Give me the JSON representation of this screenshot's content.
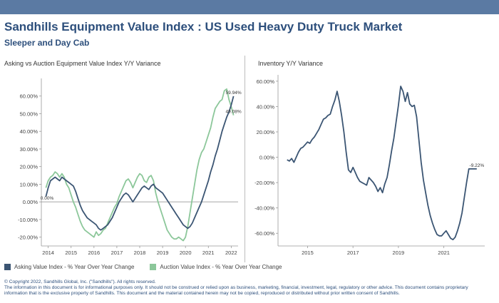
{
  "header": {
    "title": "Sandhills Equipment Value Index : US Used Heavy Duty Truck Market",
    "subtitle": "Sleeper and Day Cab"
  },
  "colors": {
    "asking": "#3b5573",
    "auction": "#8cc79a",
    "title": "#2d4f7c"
  },
  "legend": {
    "asking": "Asking Value Index - % Year Over Year Change",
    "auction": "Auction Value Index - % Year Over Year Change"
  },
  "footer": {
    "line1": "© Copyright 2022, Sandhills Global, Inc. (\"Sandhills\"). All rights reserved.",
    "line2": "The information in this document is for informational purposes only.  It should not be construed or relied upon as business, marketing, financial, investment, legal, regulatory or other advice. This document contains proprietary",
    "line3": "information that is the exclusive property of Sandhills. This document and the material contained herein may not be copied, reproduced or distributed without prior written consent of Sandhills."
  },
  "chart_data": [
    {
      "type": "line",
      "title": "Asking vs Auction Equipment Value Index Y/Y Variance",
      "ylim": [
        -25,
        70
      ],
      "xlim": [
        2013.7,
        2022.3
      ],
      "yticks": [
        -20,
        -10,
        0,
        10,
        20,
        30,
        40,
        50,
        60
      ],
      "ytick_labels": [
        "-20.00%",
        "-10.00%",
        "0.00%",
        "10.00%",
        "20.00%",
        "30.00%",
        "40.00%",
        "50.00%",
        "60.00%"
      ],
      "xticks": [
        2014,
        2015,
        2016,
        2017,
        2018,
        2019,
        2020,
        2021,
        2022
      ],
      "xtick_labels": [
        "2014",
        "2015",
        "2016",
        "2017",
        "2018",
        "2019",
        "2020",
        "2021",
        "2022"
      ],
      "grid": false,
      "zero_line": true,
      "annotations": [
        {
          "text": "0.00%",
          "x": 2013.95,
          "y": 0
        },
        {
          "text": "59.94%",
          "x": 2022.1,
          "y": 59.94
        },
        {
          "text": "49.08%",
          "x": 2022.1,
          "y": 49.08
        }
      ],
      "series": [
        {
          "name": "Asking Value Index - % Year Over Year Change",
          "x": [
            2013.9,
            2014.0,
            2014.1,
            2014.2,
            2014.3,
            2014.4,
            2014.5,
            2014.6,
            2014.7,
            2014.8,
            2014.9,
            2015.0,
            2015.1,
            2015.2,
            2015.3,
            2015.4,
            2015.5,
            2015.6,
            2015.7,
            2015.8,
            2015.9,
            2016.0,
            2016.1,
            2016.2,
            2016.3,
            2016.4,
            2016.5,
            2016.6,
            2016.7,
            2016.8,
            2016.9,
            2017.0,
            2017.1,
            2017.2,
            2017.3,
            2017.4,
            2017.5,
            2017.6,
            2017.7,
            2017.8,
            2017.9,
            2018.0,
            2018.1,
            2018.2,
            2018.3,
            2018.4,
            2018.5,
            2018.6,
            2018.7,
            2018.8,
            2018.9,
            2019.0,
            2019.1,
            2019.2,
            2019.3,
            2019.4,
            2019.5,
            2019.6,
            2019.7,
            2019.8,
            2019.9,
            2020.0,
            2020.1,
            2020.2,
            2020.3,
            2020.4,
            2020.5,
            2020.6,
            2020.7,
            2020.8,
            2020.9,
            2021.0,
            2021.1,
            2021.2,
            2021.3,
            2021.4,
            2021.5,
            2021.6,
            2021.7,
            2021.8,
            2021.9,
            2022.0,
            2022.1
          ],
          "values": [
            3,
            8,
            12,
            13,
            14,
            13,
            12,
            14,
            13,
            12,
            11,
            10,
            9,
            6,
            2,
            -2,
            -5,
            -7,
            -9,
            -10,
            -11,
            -12,
            -13,
            -15,
            -16,
            -15,
            -14,
            -13,
            -11,
            -9,
            -6,
            -3,
            0,
            2,
            4,
            5,
            4,
            2,
            0,
            2,
            4,
            6,
            8,
            9,
            8,
            7,
            9,
            10,
            8,
            7,
            6,
            5,
            3,
            1,
            -1,
            -3,
            -5,
            -7,
            -9,
            -11,
            -13,
            -14,
            -15,
            -14,
            -12,
            -9,
            -6,
            -3,
            0,
            4,
            8,
            12,
            17,
            21,
            26,
            30,
            35,
            40,
            44,
            48,
            51,
            55,
            59.94
          ]
        },
        {
          "name": "Auction Value Index - % Year Over Year Change",
          "x": [
            2013.9,
            2014.0,
            2014.1,
            2014.2,
            2014.3,
            2014.4,
            2014.5,
            2014.6,
            2014.7,
            2014.8,
            2014.9,
            2015.0,
            2015.1,
            2015.2,
            2015.3,
            2015.4,
            2015.5,
            2015.6,
            2015.7,
            2015.8,
            2015.9,
            2016.0,
            2016.1,
            2016.2,
            2016.3,
            2016.4,
            2016.5,
            2016.6,
            2016.7,
            2016.8,
            2016.9,
            2017.0,
            2017.1,
            2017.2,
            2017.3,
            2017.4,
            2017.5,
            2017.6,
            2017.7,
            2017.8,
            2017.9,
            2018.0,
            2018.1,
            2018.2,
            2018.3,
            2018.4,
            2018.5,
            2018.6,
            2018.7,
            2018.8,
            2018.9,
            2019.0,
            2019.1,
            2019.2,
            2019.3,
            2019.4,
            2019.5,
            2019.6,
            2019.7,
            2019.8,
            2019.9,
            2020.0,
            2020.1,
            2020.2,
            2020.3,
            2020.4,
            2020.5,
            2020.6,
            2020.7,
            2020.8,
            2020.9,
            2021.0,
            2021.1,
            2021.2,
            2021.3,
            2021.4,
            2021.5,
            2021.6,
            2021.7,
            2021.8,
            2021.9,
            2022.0,
            2022.1
          ],
          "values": [
            8,
            12,
            14,
            15,
            17,
            16,
            14,
            16,
            14,
            10,
            8,
            4,
            0,
            -3,
            -7,
            -11,
            -14,
            -16,
            -17,
            -18,
            -19,
            -20,
            -17,
            -19,
            -18,
            -16,
            -15,
            -12,
            -9,
            -6,
            -3,
            -1,
            3,
            6,
            9,
            12,
            13,
            11,
            8,
            11,
            14,
            16,
            15,
            12,
            11,
            14,
            15,
            12,
            5,
            0,
            -4,
            -8,
            -12,
            -16,
            -18,
            -20,
            -21,
            -21,
            -20,
            -21,
            -22,
            -20,
            -14,
            -6,
            2,
            10,
            18,
            24,
            28,
            30,
            34,
            38,
            42,
            48,
            53,
            55,
            57,
            58,
            63,
            64,
            58,
            54,
            49.08
          ]
        }
      ]
    },
    {
      "type": "line",
      "title": "Inventory Y/Y Variance",
      "ylim": [
        -70,
        65
      ],
      "xlim": [
        2013.7,
        2022.8
      ],
      "yticks": [
        -60,
        -40,
        -20,
        0,
        20,
        40,
        60
      ],
      "ytick_labels": [
        "-60.00%",
        "-40.00%",
        "-20.00%",
        "0.00%",
        "20.00%",
        "40.00%",
        "60.00%"
      ],
      "xticks": [
        2015,
        2017,
        2019,
        2021
      ],
      "xtick_labels": [
        "2015",
        "2017",
        "2019",
        "2021"
      ],
      "grid": false,
      "annotations": [
        {
          "text": "-9.22%",
          "x": 2022.45,
          "y": -9.22
        }
      ],
      "series": [
        {
          "name": "Inventory Y/Y Variance",
          "x": [
            2014.1,
            2014.2,
            2014.3,
            2014.4,
            2014.5,
            2014.6,
            2014.7,
            2014.8,
            2014.9,
            2015.0,
            2015.1,
            2015.2,
            2015.3,
            2015.4,
            2015.5,
            2015.6,
            2015.7,
            2015.8,
            2015.9,
            2016.0,
            2016.1,
            2016.2,
            2016.3,
            2016.4,
            2016.5,
            2016.6,
            2016.7,
            2016.8,
            2016.9,
            2017.0,
            2017.1,
            2017.2,
            2017.3,
            2017.4,
            2017.5,
            2017.6,
            2017.7,
            2017.8,
            2017.9,
            2018.0,
            2018.1,
            2018.2,
            2018.3,
            2018.4,
            2018.5,
            2018.6,
            2018.7,
            2018.8,
            2018.9,
            2019.0,
            2019.1,
            2019.2,
            2019.3,
            2019.4,
            2019.5,
            2019.6,
            2019.7,
            2019.8,
            2019.9,
            2020.0,
            2020.1,
            2020.2,
            2020.3,
            2020.4,
            2020.5,
            2020.6,
            2020.7,
            2020.8,
            2020.9,
            2021.0,
            2021.1,
            2021.2,
            2021.3,
            2021.4,
            2021.5,
            2021.6,
            2021.7,
            2021.8,
            2021.9,
            2022.0,
            2022.1,
            2022.2,
            2022.3,
            2022.4,
            2022.45
          ],
          "values": [
            -2,
            -3,
            -1,
            -4,
            0,
            4,
            7,
            8,
            10,
            12,
            11,
            14,
            16,
            19,
            22,
            26,
            30,
            31,
            33,
            34,
            40,
            45,
            52,
            44,
            33,
            20,
            4,
            -10,
            -12,
            -8,
            -12,
            -16,
            -19,
            -20,
            -21,
            -22,
            -16,
            -18,
            -20,
            -23,
            -27,
            -24,
            -28,
            -21,
            -16,
            -6,
            5,
            15,
            28,
            41,
            56,
            52,
            44,
            51,
            42,
            40,
            41,
            32,
            14,
            -4,
            -18,
            -28,
            -38,
            -46,
            -52,
            -57,
            -61,
            -62,
            -62,
            -60,
            -58,
            -61,
            -64,
            -65,
            -63,
            -58,
            -52,
            -44,
            -32,
            -20,
            -9.22,
            -9.22,
            -9.22,
            -9.22,
            -9.22
          ]
        }
      ]
    }
  ]
}
